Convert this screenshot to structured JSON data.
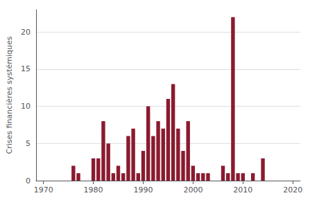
{
  "chart_data": {
    "type": "bar",
    "ylabel": "Crises financières systémiques",
    "x": [
      1970,
      1971,
      1972,
      1973,
      1974,
      1975,
      1976,
      1977,
      1978,
      1979,
      1980,
      1981,
      1982,
      1983,
      1984,
      1985,
      1986,
      1987,
      1988,
      1989,
      1990,
      1991,
      1992,
      1993,
      1994,
      1995,
      1996,
      1997,
      1998,
      1999,
      2000,
      2001,
      2002,
      2003,
      2004,
      2005,
      2006,
      2007,
      2008,
      2009,
      2010,
      2011,
      2012,
      2013,
      2014,
      2015,
      2016,
      2017,
      2018,
      2019
    ],
    "values": [
      0,
      0,
      0,
      0,
      0,
      0,
      2,
      1,
      0,
      0,
      3,
      3,
      8,
      5,
      1,
      2,
      1,
      6,
      7,
      1,
      4,
      10,
      6,
      8,
      7,
      11,
      13,
      7,
      4,
      8,
      2,
      1,
      1,
      1,
      0,
      0,
      2,
      1,
      22,
      1,
      1,
      0,
      1,
      0,
      3,
      0,
      0,
      0,
      0,
      0
    ],
    "color": "#8B1A2F",
    "xlim": [
      1968.5,
      2021.5
    ],
    "xticks": [
      1970,
      1980,
      1990,
      2000,
      2010,
      2020
    ],
    "ylim": [
      0,
      23
    ],
    "yticks": [
      0,
      5,
      10,
      15,
      20
    ],
    "grid": true
  }
}
